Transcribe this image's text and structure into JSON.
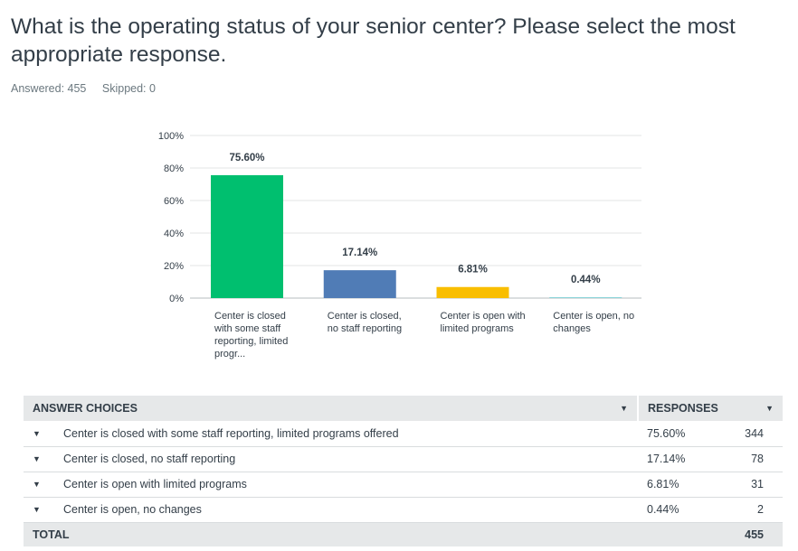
{
  "question": {
    "title": "What is the operating status of your senior center? Please select the most appropriate response.",
    "answered_label": "Answered: 455",
    "skipped_label": "Skipped: 0"
  },
  "chart_data": {
    "type": "bar",
    "categories": [
      "Center is closed with some staff reporting, limited progr...",
      "Center is closed, no staff reporting",
      "Center is open with limited programs",
      "Center is open, no changes"
    ],
    "values": [
      75.6,
      17.14,
      6.81,
      0.44
    ],
    "value_labels": [
      "75.60%",
      "17.14%",
      "6.81%",
      "0.44%"
    ],
    "colors": [
      "#00bf6f",
      "#507cb6",
      "#f9be00",
      "#6bc8cd"
    ],
    "ylim": [
      0,
      100
    ],
    "yticks": [
      "0%",
      "20%",
      "40%",
      "60%",
      "80%",
      "100%"
    ],
    "grid": true,
    "title": "",
    "xlabel": "",
    "ylabel": ""
  },
  "table": {
    "headers": {
      "choices": "ANSWER CHOICES",
      "responses": "RESPONSES"
    },
    "rows": [
      {
        "choice": "Center is closed with some staff reporting, limited programs offered",
        "percent": "75.60%",
        "count": "344"
      },
      {
        "choice": "Center is closed, no staff reporting",
        "percent": "17.14%",
        "count": "78"
      },
      {
        "choice": "Center is open with limited programs",
        "percent": "6.81%",
        "count": "31"
      },
      {
        "choice": "Center is open, no changes",
        "percent": "0.44%",
        "count": "2"
      }
    ],
    "total": {
      "label": "TOTAL",
      "count": "455"
    }
  }
}
